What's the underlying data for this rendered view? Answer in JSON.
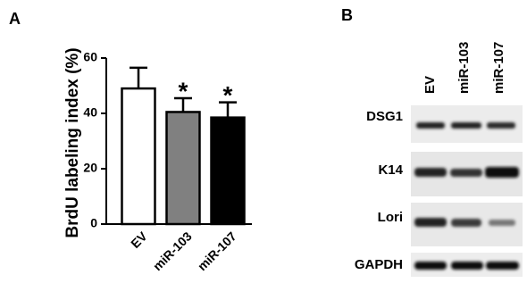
{
  "chart_data": {
    "type": "bar",
    "panel_label": "A",
    "ylabel": "BrdU labeling index (%)",
    "categories": [
      "EV",
      "miR-103",
      "miR-107"
    ],
    "values": [
      49,
      40.5,
      38.5
    ],
    "errors": [
      7.5,
      5,
      5.5
    ],
    "colors": [
      "#ffffff",
      "#808080",
      "#000000"
    ],
    "significance": [
      null,
      "*",
      "*"
    ],
    "ylim": [
      0,
      60
    ],
    "yticks": [
      0,
      20,
      40,
      60
    ]
  },
  "blot": {
    "panel_label": "B",
    "lanes": [
      "EV",
      "miR-103",
      "miR-107"
    ],
    "rows": [
      "DSG1",
      "K14",
      "Lori",
      "GAPDH"
    ]
  }
}
